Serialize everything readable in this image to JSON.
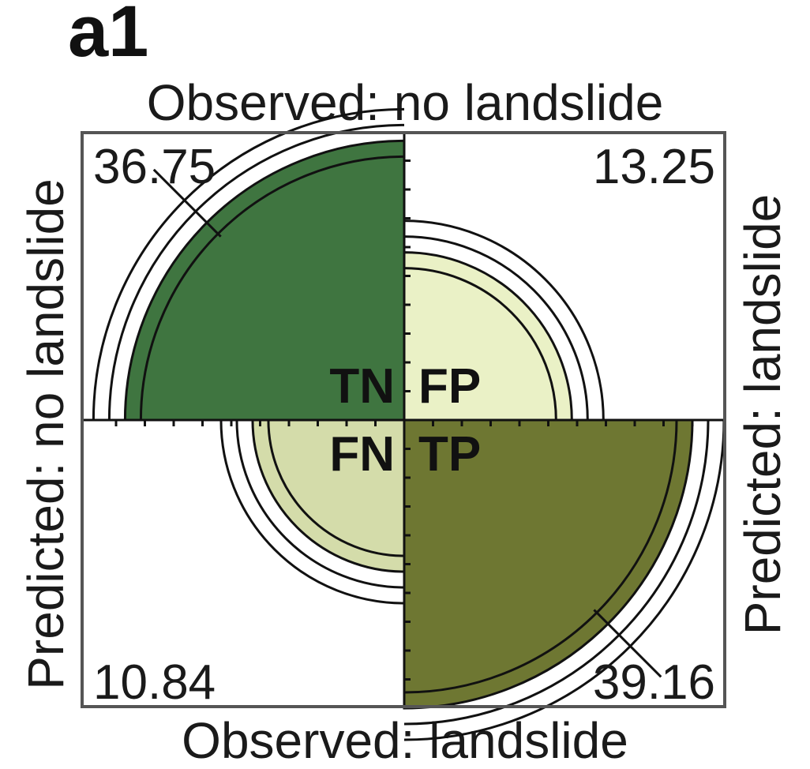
{
  "panel_label": "a1",
  "labels": {
    "top": "Observed: no landslide",
    "bottom": "Observed: landslide",
    "left": "Predicted: no landslide",
    "right": "Predicted: landslide"
  },
  "chart_data": {
    "type": "fourfold",
    "title": "",
    "cells": [
      {
        "key": "TN",
        "value": 36.75,
        "value_label": "36.75",
        "quadrant": "top-left",
        "color": "#3f7540"
      },
      {
        "key": "FP",
        "value": 13.25,
        "value_label": "13.25",
        "quadrant": "top-right",
        "color": "#eaf1c6"
      },
      {
        "key": "FN",
        "value": 10.84,
        "value_label": "10.84",
        "quadrant": "bottom-left",
        "color": "#d4dcaa"
      },
      {
        "key": "TP",
        "value": 39.16,
        "value_label": "39.16",
        "quadrant": "bottom-right",
        "color": "#6e7732"
      }
    ],
    "confidence_rings": true,
    "grid": false
  }
}
